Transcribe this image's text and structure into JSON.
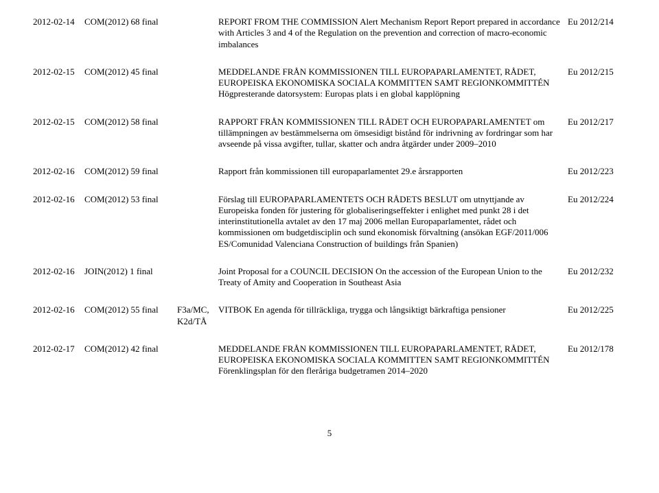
{
  "page_number": "5",
  "columns": [
    "date",
    "reference",
    "extra",
    "title",
    "eu"
  ],
  "rows": [
    {
      "date": "2012-02-14",
      "reference": "COM(2012) 68 final",
      "extra": "",
      "title": "REPORT FROM THE COMMISSION Alert Mechanism Report Report prepared in accordance with Articles 3 and 4 of the Regulation on the prevention and correction of macro-economic imbalances",
      "eu": "Eu 2012/214"
    },
    {
      "date": "2012-02-15",
      "reference": "COM(2012) 45 final",
      "extra": "",
      "title": "MEDDELANDE FRÅN KOMMISSIONEN TILL EUROPAPARLAMENTET, RÅDET, EUROPEISKA EKONOMISKA SOCIALA KOMMITTEN SAMT REGIONKOMMITTÉN Högpresterande datorsystem: Europas plats i en global kapplöpning",
      "eu": "Eu 2012/215"
    },
    {
      "date": "2012-02-15",
      "reference": "COM(2012) 58 final",
      "extra": "",
      "title": "RAPPORT FRÅN KOMMISSIONEN TILL RÅDET OCH EUROPAPARLAMENTET om tillämpningen av bestämmelserna om ömsesidigt bistånd för indrivning av fordringar som har avseende på vissa avgifter, tullar, skatter och andra åtgärder under 2009–2010",
      "eu": "Eu 2012/217"
    },
    {
      "date": "2012-02-16",
      "reference": "COM(2012) 59 final",
      "extra": "",
      "title": "Rapport från kommissionen till europaparlamentet 29.e årsrapporten",
      "eu": "Eu 2012/223"
    },
    {
      "date": "2012-02-16",
      "reference": "COM(2012) 53 final",
      "extra": "",
      "title": "Förslag till EUROPAPARLAMENTETS OCH RÅDETS BESLUT om utnyttjande av Europeiska fonden för justering för globaliseringseffekter i enlighet med punkt 28 i det interinstitutionella avtalet av den 17 maj 2006 mellan Europaparlamentet, rådet och kommissionen om budgetdisciplin och sund ekonomisk förvaltning (ansökan EGF/2011/006 ES/Comunidad Valenciana Construction of buildings från Spanien)",
      "eu": "Eu 2012/224"
    },
    {
      "date": "2012-02-16",
      "reference": "JOIN(2012) 1 final",
      "extra": "",
      "title": "Joint Proposal for a COUNCIL DECISION On the accession of the European Union to the Treaty of Amity and Cooperation in Southeast Asia",
      "eu": "Eu 2012/232"
    },
    {
      "date": "2012-02-16",
      "reference": "COM(2012) 55 final",
      "extra": "F3a/MC, K2d/TÅ",
      "title": "VITBOK En agenda för tillräckliga, trygga och långsiktigt bärkraftiga pensioner",
      "eu": "Eu 2012/225"
    },
    {
      "date": "2012-02-17",
      "reference": "COM(2012) 42 final",
      "extra": "",
      "title": "MEDDELANDE FRÅN KOMMISSIONEN TILL EUROPAPARLAMENTET, RÅDET, EUROPEISKA EKONOMISKA SOCIALA KOMMITTEN SAMT REGIONKOMMITTÉN Förenklingsplan för den fleråriga budgetramen 2014–2020",
      "eu": "Eu 2012/178"
    }
  ]
}
